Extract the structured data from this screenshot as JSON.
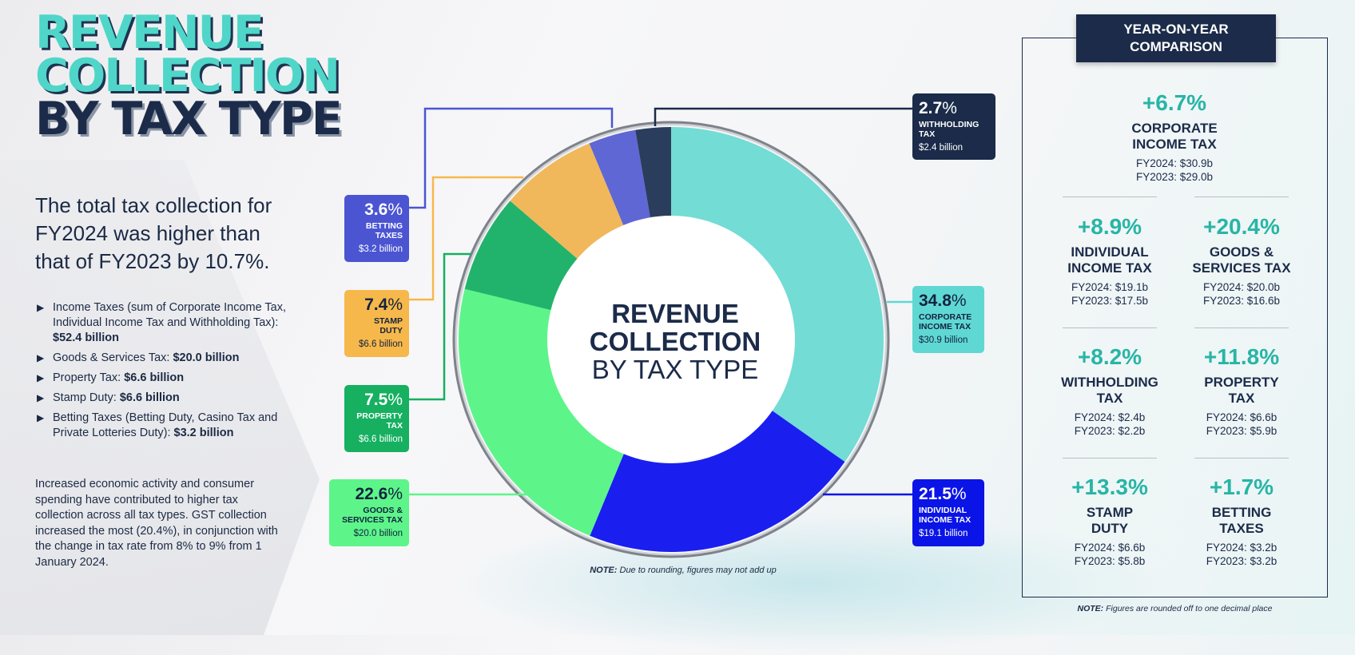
{
  "title": {
    "line1": "REVENUE",
    "line2": "COLLECTION",
    "line3": "BY TAX TYPE"
  },
  "summary": "The total tax collection for FY2024 was higher than that of FY2023 by 10.7%.",
  "bullets": [
    {
      "text": "Income Taxes (sum of Corporate Income Tax, Individual Income Tax and Withholding Tax): ",
      "value": "$52.4 billion"
    },
    {
      "text": "Goods & Services Tax: ",
      "value": "$20.0 billion"
    },
    {
      "text": "Property Tax: ",
      "value": "$6.6 billion"
    },
    {
      "text": "Stamp Duty: ",
      "value": "$6.6 billion"
    },
    {
      "text": "Betting Taxes (Betting Duty, Casino Tax and Private Lotteries Duty): ",
      "value": "$3.2 billion"
    }
  ],
  "paragraph": "Increased economic activity and consumer spending have contributed to higher tax collection across all tax types. GST collection increased the most (20.4%), in conjunction with the change in tax rate from 8% to 9% from 1 January 2024.",
  "chart_data": {
    "type": "pie",
    "donut": true,
    "center_title": {
      "line1": "REVENUE",
      "line2": "COLLECTION",
      "line3": "BY TAX TYPE"
    },
    "unit": "%",
    "slices": [
      {
        "label": "CORPORATE INCOME TAX",
        "value": 34.8,
        "amount": "$30.9 billion",
        "color": "#72dcd5"
      },
      {
        "label": "INDIVIDUAL INCOME TAX",
        "value": 21.5,
        "amount": "$19.1 billion",
        "color": "#1a1ff0"
      },
      {
        "label": "GOODS & SERVICES TAX",
        "value": 22.6,
        "amount": "$20.0 billion",
        "color": "#5df58a"
      },
      {
        "label": "PROPERTY TAX",
        "value": 7.5,
        "amount": "$6.6 billion",
        "color": "#21b36b"
      },
      {
        "label": "STAMP DUTY",
        "value": 7.4,
        "amount": "$6.6 billion",
        "color": "#f0b85a"
      },
      {
        "label": "BETTING TAXES",
        "value": 3.6,
        "amount": "$3.2 billion",
        "color": "#5f67d4"
      },
      {
        "label": "WITHHOLDING TAX",
        "value": 2.7,
        "amount": "$2.4 billion",
        "color": "#2b3d5c"
      }
    ],
    "note": {
      "label": "NOTE:",
      "text": "Due to rounding, figures may not add up"
    }
  },
  "labels": {
    "withholding": {
      "pct": "2.7",
      "name_lines": [
        "WITHHOLDING",
        "TAX"
      ],
      "amount": "$2.4 billion",
      "color": "#1b2b49"
    },
    "corporate": {
      "pct": "34.8",
      "name_lines": [
        "CORPORATE",
        "INCOME TAX"
      ],
      "amount": "$30.9 billion",
      "color": "#5fd8d3"
    },
    "individual": {
      "pct": "21.5",
      "name_lines": [
        "INDIVIDUAL",
        "INCOME TAX"
      ],
      "amount": "$19.1 billion",
      "color": "#0a14e6"
    },
    "gst": {
      "pct": "22.6",
      "name_lines": [
        "GOODS &",
        "SERVICES TAX"
      ],
      "amount": "$20.0 billion",
      "color": "#5df58a"
    },
    "property": {
      "pct": "7.5",
      "name_lines": [
        "PROPERTY",
        "TAX"
      ],
      "amount": "$6.6 billion",
      "color": "#16b060"
    },
    "stamp": {
      "pct": "7.4",
      "name_lines": [
        "STAMP",
        "DUTY"
      ],
      "amount": "$6.6 billion",
      "color": "#f6b84b"
    },
    "betting": {
      "pct": "3.6",
      "name_lines": [
        "BETTING",
        "TAXES"
      ],
      "amount": "$3.2 billion",
      "color": "#4b55d2"
    },
    "pct_sign": "%"
  },
  "yoy": {
    "header_line1": "YEAR-ON-YEAR",
    "header_line2": "COMPARISON",
    "items": [
      {
        "pct": "+6.7%",
        "name1": "CORPORATE",
        "name2": "INCOME TAX",
        "fy2024": "FY2024: $30.9b",
        "fy2023": "FY2023: $29.0b"
      },
      {
        "pct": "+8.9%",
        "name1": "INDIVIDUAL",
        "name2": "INCOME TAX",
        "fy2024": "FY2024: $19.1b",
        "fy2023": "FY2023: $17.5b"
      },
      {
        "pct": "+20.4%",
        "name1": "GOODS &",
        "name2": "SERVICES TAX",
        "fy2024": "FY2024: $20.0b",
        "fy2023": "FY2023: $16.6b"
      },
      {
        "pct": "+8.2%",
        "name1": "WITHHOLDING",
        "name2": "TAX",
        "fy2024": "FY2024: $2.4b",
        "fy2023": "FY2023: $2.2b"
      },
      {
        "pct": "+11.8%",
        "name1": "PROPERTY",
        "name2": "TAX",
        "fy2024": "FY2024: $6.6b",
        "fy2023": "FY2023: $5.9b"
      },
      {
        "pct": "+13.3%",
        "name1": "STAMP",
        "name2": "DUTY",
        "fy2024": "FY2024: $6.6b",
        "fy2023": "FY2023: $5.8b"
      },
      {
        "pct": "+1.7%",
        "name1": "BETTING",
        "name2": "TAXES",
        "fy2024": "FY2024: $3.2b",
        "fy2023": "FY2023: $3.2b"
      }
    ],
    "note": {
      "label": "NOTE:",
      "text": "Figures are rounded off to one decimal place"
    }
  }
}
